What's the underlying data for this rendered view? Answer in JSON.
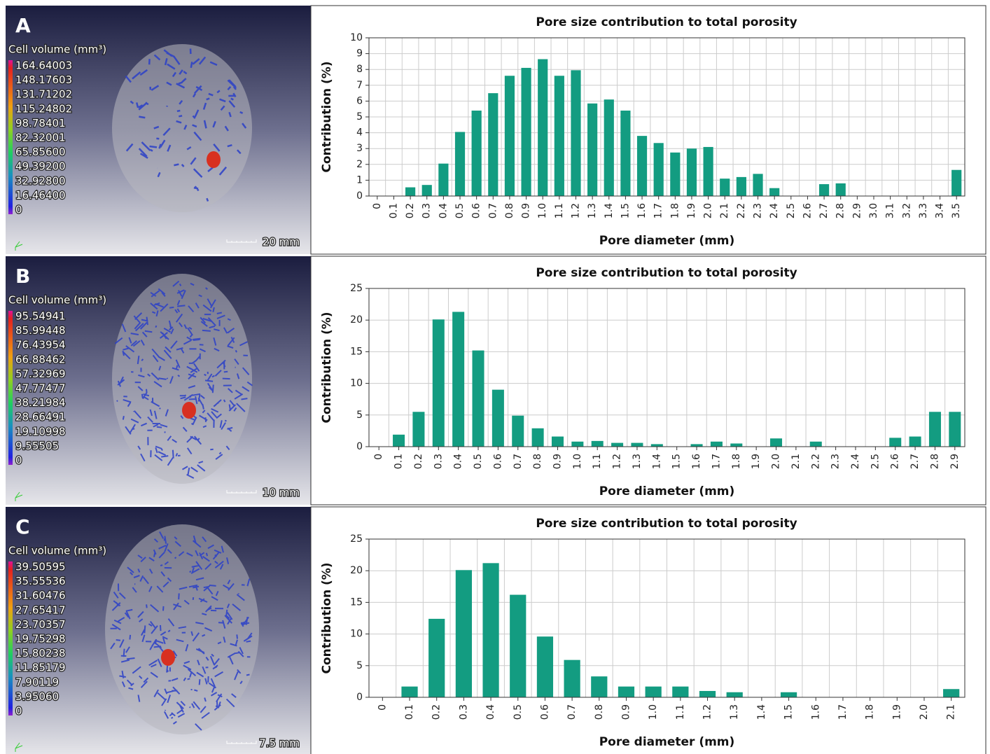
{
  "panels": [
    {
      "label": "A",
      "legend_title": "Cell volume (mm³)",
      "legend_labels": [
        "164.64003",
        "148.17603",
        "131.71202",
        "115.24802",
        "98.78401",
        "82.32001",
        "65.85600",
        "49.39200",
        "32.92800",
        "16.46400",
        "0"
      ],
      "scale_bar": "20 mm"
    },
    {
      "label": "B",
      "legend_title": "Cell volume (mm³)",
      "legend_labels": [
        "95.54941",
        "85.99448",
        "76.43954",
        "66.88462",
        "57.32969",
        "47.77477",
        "38.21984",
        "28.66491",
        "19.10998",
        "9.55505",
        "0"
      ],
      "scale_bar": "10 mm"
    },
    {
      "label": "C",
      "legend_title": "Cell volume (mm³)",
      "legend_labels": [
        "39.50595",
        "35.55536",
        "31.60476",
        "27.65417",
        "23.70357",
        "19.75298",
        "15.80238",
        "11.85179",
        "7.90119",
        "3.95060",
        "0"
      ],
      "scale_bar": "7.5 mm"
    }
  ],
  "chart_data": [
    {
      "type": "bar",
      "title": "Pore size contribution to total porosity",
      "x_label": "Pore diameter (mm)",
      "y_label": "Contribution (%)",
      "categories": [
        "0",
        "0.1",
        "0.2",
        "0.3",
        "0.4",
        "0.5",
        "0.6",
        "0.7",
        "0.8",
        "0.9",
        "1.0",
        "1.1",
        "1.2",
        "1.3",
        "1.4",
        "1.5",
        "1.6",
        "1.7",
        "1.8",
        "1.9",
        "2.0",
        "2.1",
        "2.2",
        "2.3",
        "2.4",
        "2.5",
        "2.6",
        "2.7",
        "2.8",
        "2.9",
        "3.0",
        "3.1",
        "3.2",
        "3.3",
        "3.4",
        "3.5"
      ],
      "values": [
        0,
        0,
        0.55,
        0.7,
        2.05,
        4.05,
        5.4,
        6.5,
        7.6,
        8.1,
        8.65,
        7.6,
        7.95,
        5.85,
        6.1,
        5.4,
        3.8,
        3.35,
        2.75,
        3.0,
        3.1,
        1.1,
        1.2,
        1.4,
        0.5,
        0,
        0,
        0.75,
        0.8,
        0,
        0,
        0,
        0,
        0,
        0,
        1.65
      ],
      "color": "#139c81",
      "ylim": [
        0,
        10
      ],
      "yticks": [
        0,
        1,
        2,
        3,
        4,
        5,
        6,
        7,
        8,
        9,
        10
      ],
      "grid": true
    },
    {
      "type": "bar",
      "title": "Pore size contribution to total porosity",
      "x_label": "Pore diameter (mm)",
      "y_label": "Contribution (%)",
      "categories": [
        "0",
        "0.1",
        "0.2",
        "0.3",
        "0.4",
        "0.5",
        "0.6",
        "0.7",
        "0.8",
        "0.9",
        "1.0",
        "1.1",
        "1.2",
        "1.3",
        "1.4",
        "1.5",
        "1.6",
        "1.7",
        "1.8",
        "1.9",
        "2.0",
        "2.1",
        "2.2",
        "2.3",
        "2.4",
        "2.5",
        "2.6",
        "2.7",
        "2.8",
        "2.9"
      ],
      "values": [
        0,
        1.9,
        5.5,
        20.1,
        21.3,
        15.2,
        9.0,
        4.9,
        2.9,
        1.6,
        0.8,
        0.9,
        0.6,
        0.6,
        0.4,
        0,
        0.4,
        0.8,
        0.5,
        0,
        1.3,
        0,
        0.8,
        0,
        0,
        0,
        1.4,
        1.6,
        5.5,
        5.5
      ],
      "color": "#139c81",
      "ylim": [
        0,
        25
      ],
      "yticks": [
        0,
        5,
        10,
        15,
        20,
        25
      ],
      "grid": true
    },
    {
      "type": "bar",
      "title": "Pore size contribution to total porosity",
      "x_label": "Pore diameter (mm)",
      "y_label": "Contribution (%)",
      "categories": [
        "0",
        "0.1",
        "0.2",
        "0.3",
        "0.4",
        "0.5",
        "0.6",
        "0.7",
        "0.8",
        "0.9",
        "1.0",
        "1.1",
        "1.2",
        "1.3",
        "1.4",
        "1.5",
        "1.6",
        "1.7",
        "1.8",
        "1.9",
        "2.0",
        "2.1"
      ],
      "values": [
        0,
        1.7,
        12.4,
        20.1,
        21.2,
        16.2,
        9.6,
        5.9,
        3.3,
        1.7,
        1.7,
        1.7,
        1.0,
        0.8,
        0,
        0.8,
        0,
        0,
        0,
        0,
        0,
        1.3
      ],
      "color": "#139c81",
      "ylim": [
        0,
        25
      ],
      "yticks": [
        0,
        5,
        10,
        15,
        20,
        25
      ],
      "grid": true
    }
  ]
}
